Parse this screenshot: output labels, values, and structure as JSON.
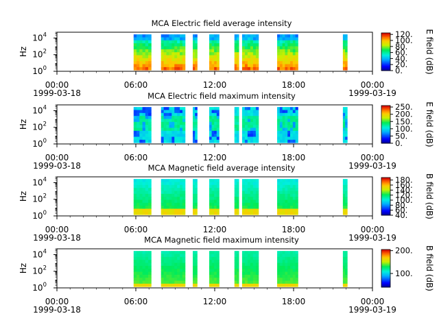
{
  "chart_data": [
    {
      "type": "heatmap",
      "title": "MCA  Electric field average intensity",
      "ylabel": "Hz",
      "xlim": [
        "1999-03-18T00:00",
        "1999-03-19T00:00"
      ],
      "ylim": [
        1,
        50000
      ],
      "yscale": "log",
      "y_ticks": [
        {
          "base": "10",
          "exp": "0"
        },
        {
          "base": "10",
          "exp": "2"
        },
        {
          "base": "10",
          "exp": "4"
        }
      ],
      "x_ticks": [
        {
          "time": "00:00",
          "date": "1999-03-18"
        },
        {
          "time": "06:00",
          "date": ""
        },
        {
          "time": "12:00",
          "date": ""
        },
        {
          "time": "18:00",
          "date": ""
        },
        {
          "time": "00:00",
          "date": "1999-03-19"
        }
      ],
      "colorbar": {
        "label": "E field (dB)",
        "min": 0,
        "max": 125,
        "ticks": [
          "0.",
          "20.",
          "40.",
          "60.",
          "80.",
          "100.",
          "120."
        ],
        "tick_values": [
          0,
          20,
          40,
          60,
          80,
          100,
          120
        ]
      },
      "data_intervals": [
        [
          "05:50",
          "07:10"
        ],
        [
          "07:55",
          "09:45"
        ],
        [
          "10:20",
          "10:40"
        ],
        [
          "11:35",
          "12:20"
        ],
        [
          "13:30",
          "13:50"
        ],
        [
          "14:05",
          "15:20"
        ],
        [
          "16:45",
          "18:20"
        ],
        [
          "21:45",
          "22:05"
        ]
      ],
      "profile": "e_avg"
    },
    {
      "type": "heatmap",
      "title": "MCA  Electric field maximum intensity",
      "ylabel": "Hz",
      "xlim": [
        "1999-03-18T00:00",
        "1999-03-19T00:00"
      ],
      "ylim": [
        1,
        50000
      ],
      "yscale": "log",
      "y_ticks": [
        {
          "base": "10",
          "exp": "0"
        },
        {
          "base": "10",
          "exp": "2"
        },
        {
          "base": "10",
          "exp": "4"
        }
      ],
      "x_ticks": [
        {
          "time": "00:00",
          "date": "1999-03-18"
        },
        {
          "time": "06:00",
          "date": ""
        },
        {
          "time": "12:00",
          "date": ""
        },
        {
          "time": "18:00",
          "date": ""
        },
        {
          "time": "00:00",
          "date": "1999-03-19"
        }
      ],
      "colorbar": {
        "label": "E field (dB)",
        "min": 0,
        "max": 260,
        "ticks": [
          "0.",
          "50.",
          "100.",
          "150.",
          "200.",
          "250."
        ],
        "tick_values": [
          0,
          50,
          100,
          150,
          200,
          250
        ]
      },
      "data_intervals": [
        [
          "05:50",
          "07:10"
        ],
        [
          "07:55",
          "09:45"
        ],
        [
          "10:20",
          "10:40"
        ],
        [
          "11:35",
          "12:20"
        ],
        [
          "13:30",
          "13:50"
        ],
        [
          "14:05",
          "15:20"
        ],
        [
          "16:45",
          "18:20"
        ],
        [
          "21:45",
          "22:05"
        ]
      ],
      "profile": "e_max"
    },
    {
      "type": "heatmap",
      "title": "MCA  Magnetic field average intensity",
      "ylabel": "Hz",
      "xlim": [
        "1999-03-18T00:00",
        "1999-03-19T00:00"
      ],
      "ylim": [
        1,
        50000
      ],
      "yscale": "log",
      "y_ticks": [
        {
          "base": "10",
          "exp": "0"
        },
        {
          "base": "10",
          "exp": "2"
        },
        {
          "base": "10",
          "exp": "4"
        }
      ],
      "x_ticks": [
        {
          "time": "00:00",
          "date": "1999-03-18"
        },
        {
          "time": "06:00",
          "date": ""
        },
        {
          "time": "12:00",
          "date": ""
        },
        {
          "time": "18:00",
          "date": ""
        },
        {
          "time": "00:00",
          "date": "1999-03-19"
        }
      ],
      "colorbar": {
        "label": "B field (dB)",
        "min": 40,
        "max": 190,
        "ticks": [
          "40.",
          "60.",
          "80.",
          "100.",
          "120.",
          "140.",
          "160.",
          "180."
        ],
        "tick_values": [
          40,
          60,
          80,
          100,
          120,
          140,
          160,
          180
        ]
      },
      "data_intervals": [
        [
          "05:50",
          "07:10"
        ],
        [
          "07:55",
          "09:45"
        ],
        [
          "10:20",
          "10:40"
        ],
        [
          "11:35",
          "12:20"
        ],
        [
          "13:30",
          "13:50"
        ],
        [
          "14:05",
          "15:20"
        ],
        [
          "16:45",
          "18:20"
        ],
        [
          "21:45",
          "22:05"
        ]
      ],
      "profile": "b_avg"
    },
    {
      "type": "heatmap",
      "title": "MCA  Magnetic field maximum intensity",
      "ylabel": "Hz",
      "xlim": [
        "1999-03-18T00:00",
        "1999-03-19T00:00"
      ],
      "ylim": [
        1,
        50000
      ],
      "yscale": "log",
      "y_ticks": [
        {
          "base": "10",
          "exp": "0"
        },
        {
          "base": "10",
          "exp": "2"
        },
        {
          "base": "10",
          "exp": "4"
        }
      ],
      "x_ticks": [
        {
          "time": "00:00",
          "date": "1999-03-18"
        },
        {
          "time": "06:00",
          "date": ""
        },
        {
          "time": "12:00",
          "date": ""
        },
        {
          "time": "18:00",
          "date": ""
        },
        {
          "time": "00:00",
          "date": "1999-03-19"
        }
      ],
      "colorbar": {
        "label": "B field (dB)",
        "min": 40,
        "max": 205,
        "ticks": [
          "100.",
          "200."
        ],
        "tick_values": [
          100,
          200
        ]
      },
      "data_intervals": [
        [
          "05:50",
          "07:10"
        ],
        [
          "07:55",
          "09:45"
        ],
        [
          "10:20",
          "10:40"
        ],
        [
          "11:35",
          "12:20"
        ],
        [
          "13:30",
          "13:50"
        ],
        [
          "14:05",
          "15:20"
        ],
        [
          "16:45",
          "18:20"
        ],
        [
          "21:45",
          "22:05"
        ]
      ],
      "profile": "b_max"
    }
  ]
}
